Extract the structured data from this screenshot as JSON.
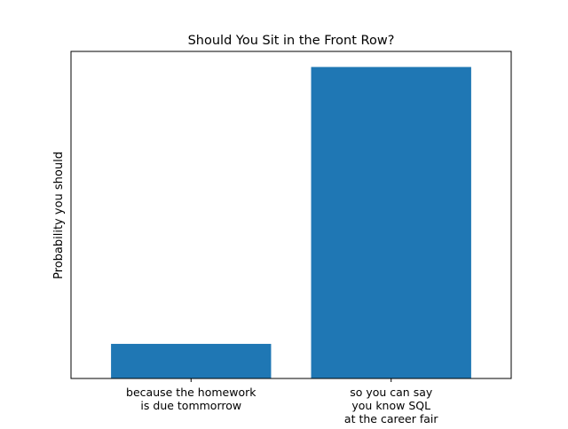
{
  "chart_data": {
    "type": "bar",
    "title": "Should You Sit in the Front Row?",
    "xlabel": "",
    "ylabel": "Probability you should",
    "categories": [
      [
        "because the homework",
        "is due tommorrow"
      ],
      [
        "so you can say",
        "you know SQL",
        "at the career fair"
      ]
    ],
    "values": [
      0.1,
      0.9
    ],
    "ylim": [
      0,
      0.945
    ],
    "y_ticks_shown": false,
    "grid": false,
    "colors": {
      "bar": "#1f77b4",
      "axes": "#000000",
      "background": "#ffffff"
    }
  }
}
